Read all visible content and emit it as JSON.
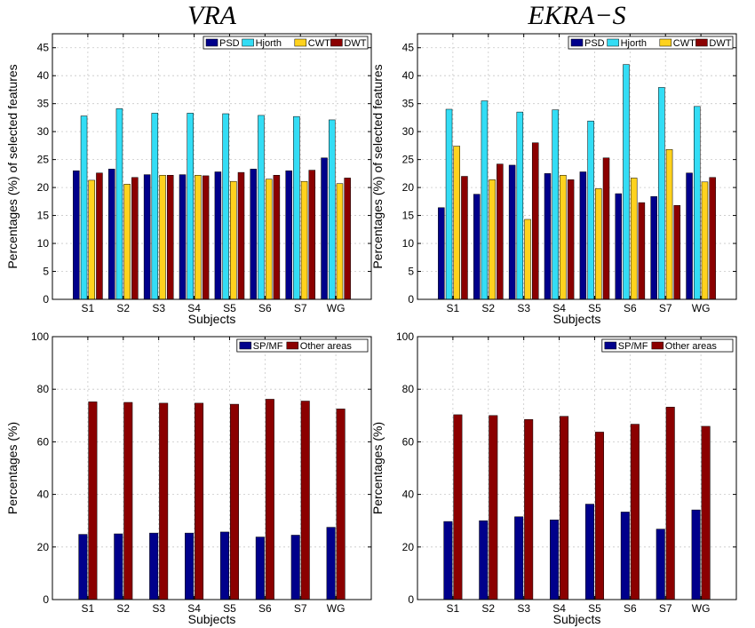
{
  "chart_data": [
    {
      "type": "bar",
      "title": "VRA",
      "xlabel": "Subjects",
      "ylabel": "Percentages (%) of selected features",
      "ylim": [
        0,
        47.5
      ],
      "yticks": [
        0,
        5,
        10,
        15,
        20,
        25,
        30,
        35,
        40,
        45
      ],
      "grid": true,
      "legend": "top-right",
      "categories": [
        "S1",
        "S2",
        "S3",
        "S4",
        "S5",
        "S6",
        "S7",
        "WG"
      ],
      "series": [
        {
          "name": "PSD",
          "color": "#00008b",
          "values": [
            23.0,
            23.3,
            22.3,
            22.3,
            22.8,
            23.3,
            23.0,
            25.3
          ]
        },
        {
          "name": "Hjorth",
          "color": "#33ddf5",
          "values": [
            32.8,
            34.1,
            33.3,
            33.3,
            33.2,
            32.9,
            32.7,
            32.1
          ]
        },
        {
          "name": "CWT",
          "color": "#ffd21e",
          "values": [
            21.3,
            20.6,
            22.2,
            22.2,
            21.1,
            21.5,
            21.1,
            20.7
          ]
        },
        {
          "name": "DWT",
          "color": "#8b0000",
          "values": [
            22.6,
            21.8,
            22.2,
            22.1,
            22.7,
            22.2,
            23.1,
            21.7
          ]
        }
      ]
    },
    {
      "type": "bar",
      "title": "EKRA−S",
      "xlabel": "Subjects",
      "ylabel": "Percentages (%) of selected features",
      "ylim": [
        0,
        47.5
      ],
      "yticks": [
        0,
        5,
        10,
        15,
        20,
        25,
        30,
        35,
        40,
        45
      ],
      "grid": true,
      "legend": "top-right",
      "categories": [
        "S1",
        "S2",
        "S3",
        "S4",
        "S5",
        "S6",
        "S7",
        "WG"
      ],
      "series": [
        {
          "name": "PSD",
          "color": "#00008b",
          "values": [
            16.4,
            18.8,
            24.0,
            22.5,
            22.8,
            18.9,
            18.4,
            22.6
          ]
        },
        {
          "name": "Hjorth",
          "color": "#33ddf5",
          "values": [
            34.0,
            35.5,
            33.5,
            33.9,
            31.9,
            42.0,
            37.9,
            34.5
          ]
        },
        {
          "name": "CWT",
          "color": "#ffd21e",
          "values": [
            27.4,
            21.4,
            14.3,
            22.2,
            19.8,
            21.7,
            26.8,
            21.0
          ]
        },
        {
          "name": "DWT",
          "color": "#8b0000",
          "values": [
            22.0,
            24.2,
            28.0,
            21.4,
            25.3,
            17.3,
            16.8,
            21.8
          ]
        }
      ]
    },
    {
      "type": "bar",
      "title": "",
      "xlabel": "Subjects",
      "ylabel": "Percentages (%)",
      "ylim": [
        0,
        100
      ],
      "yticks": [
        0,
        20,
        40,
        60,
        80,
        100
      ],
      "grid": true,
      "legend": "top-right",
      "categories": [
        "S1",
        "S2",
        "S3",
        "S4",
        "S5",
        "S6",
        "S7",
        "WG"
      ],
      "series": [
        {
          "name": "SP/MF",
          "color": "#00008b",
          "values": [
            24.8,
            25.0,
            25.3,
            25.3,
            25.7,
            23.8,
            24.5,
            27.5
          ]
        },
        {
          "name": "Other areas",
          "color": "#8b0000",
          "values": [
            75.2,
            75.0,
            74.7,
            74.7,
            74.3,
            76.2,
            75.5,
            72.5
          ]
        }
      ]
    },
    {
      "type": "bar",
      "title": "",
      "xlabel": "Subjects",
      "ylabel": "Percentages (%)",
      "ylim": [
        0,
        100
      ],
      "yticks": [
        0,
        20,
        40,
        60,
        80,
        100
      ],
      "grid": true,
      "legend": "top-right",
      "categories": [
        "S1",
        "S2",
        "S3",
        "S4",
        "S5",
        "S6",
        "S7",
        "WG"
      ],
      "series": [
        {
          "name": "SP/MF",
          "color": "#00008b",
          "values": [
            29.7,
            30.0,
            31.5,
            30.3,
            36.3,
            33.3,
            26.8,
            34.1
          ]
        },
        {
          "name": "Other areas",
          "color": "#8b0000",
          "values": [
            70.3,
            70.0,
            68.5,
            69.7,
            63.7,
            66.7,
            73.2,
            65.9
          ]
        }
      ]
    }
  ]
}
